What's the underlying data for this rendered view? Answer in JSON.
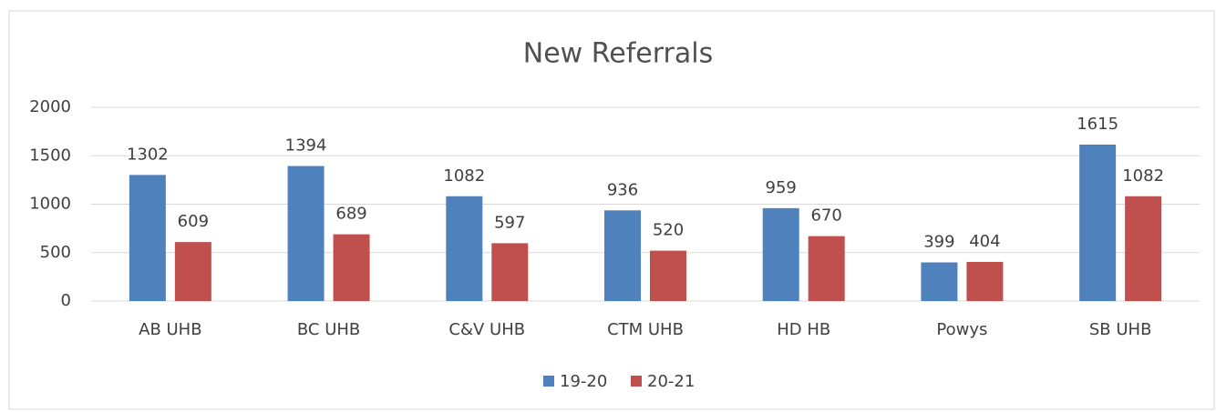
{
  "chart_data": {
    "type": "bar",
    "title": "New Referrals",
    "categories": [
      "AB UHB",
      "BC UHB",
      "C&V UHB",
      "CTM  UHB",
      "HD HB",
      "Powys",
      "SB UHB"
    ],
    "series": [
      {
        "name": "19-20",
        "color": "#4f81bd",
        "values": [
          1302,
          1394,
          1082,
          936,
          959,
          399,
          1615
        ]
      },
      {
        "name": "20-21",
        "color": "#c0504d",
        "values": [
          609,
          689,
          597,
          520,
          670,
          404,
          1082
        ]
      }
    ],
    "ylim": [
      0,
      2000
    ],
    "yticks": [
      0,
      500,
      1000,
      1500,
      2000
    ],
    "grid": true,
    "legend": "bottom"
  }
}
